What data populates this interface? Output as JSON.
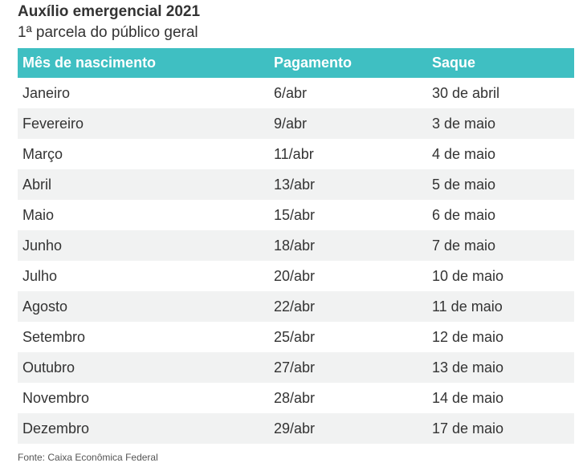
{
  "title": "Auxílio emergencial 2021",
  "subtitle": "1ª parcela do público geral",
  "colors": {
    "header_bg": "#3fbfc2",
    "header_text": "#ffffff",
    "stripe": "#f1f2f2"
  },
  "table": {
    "headers": [
      "Mês de nascimento",
      "Pagamento",
      "Saque"
    ],
    "rows": [
      [
        "Janeiro",
        "6/abr",
        "30 de abril"
      ],
      [
        "Fevereiro",
        "9/abr",
        "3 de maio"
      ],
      [
        "Março",
        "11/abr",
        "4 de maio"
      ],
      [
        "Abril",
        "13/abr",
        "5 de maio"
      ],
      [
        "Maio",
        "15/abr",
        "6 de maio"
      ],
      [
        "Junho",
        "18/abr",
        "7 de maio"
      ],
      [
        "Julho",
        "20/abr",
        "10 de maio"
      ],
      [
        "Agosto",
        "22/abr",
        "11 de maio"
      ],
      [
        "Setembro",
        "25/abr",
        "12 de maio"
      ],
      [
        "Outubro",
        "27/abr",
        "13 de maio"
      ],
      [
        "Novembro",
        "28/abr",
        "14 de maio"
      ],
      [
        "Dezembro",
        "29/abr",
        "17 de maio"
      ]
    ]
  },
  "source": "Fonte: Caixa Econômica Federal"
}
